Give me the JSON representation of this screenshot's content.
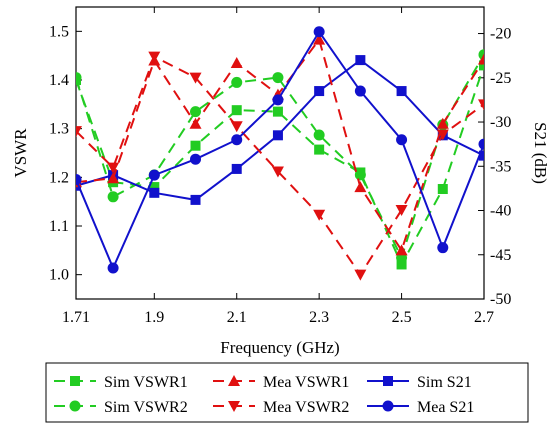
{
  "chart_data": {
    "type": "line",
    "xlabel": "Frequency (GHz)",
    "ylabel_left": "VSWR",
    "ylabel_right": "S21 (dB)",
    "x_ticks": [
      "1.71",
      "1.9",
      "2.1",
      "2.3",
      "2.5",
      "2.7"
    ],
    "x_tick_values": [
      1.71,
      1.9,
      2.1,
      2.3,
      2.5,
      2.7
    ],
    "y_left_ticks": [
      "1.0",
      "1.1",
      "1.2",
      "1.3",
      "1.4",
      "1.5"
    ],
    "y_left_tick_values": [
      1.0,
      1.1,
      1.2,
      1.3,
      1.4,
      1.5
    ],
    "y_right_ticks": [
      "-20",
      "-25",
      "-30",
      "-35",
      "-40",
      "-45",
      "-50"
    ],
    "y_right_tick_values": [
      -20,
      -25,
      -30,
      -35,
      -40,
      -45,
      -50
    ],
    "xlim": [
      1.71,
      2.7
    ],
    "ylim_left": [
      0.95,
      1.55
    ],
    "ylim_right": [
      -50,
      -17
    ],
    "grid": false,
    "legend_position": "bottom",
    "x": [
      1.71,
      1.8,
      1.9,
      2.0,
      2.1,
      2.2,
      2.3,
      2.4,
      2.5,
      2.6,
      2.7
    ],
    "series": [
      {
        "name": "Sim VSWR1",
        "axis": "left",
        "color": "#22cc22",
        "dash": "dashed",
        "marker": "square",
        "values": [
          1.4,
          1.19,
          1.18,
          1.265,
          1.338,
          1.335,
          1.257,
          1.21,
          1.021,
          1.176,
          1.43
        ]
      },
      {
        "name": "Sim VSWR2",
        "axis": "left",
        "color": "#22cc22",
        "dash": "dashed",
        "marker": "circle",
        "values": [
          1.405,
          1.16,
          1.205,
          1.335,
          1.395,
          1.405,
          1.287,
          1.205,
          1.035,
          1.308,
          1.452
        ]
      },
      {
        "name": "Sim S21",
        "axis": "right",
        "color": "#1111cc",
        "dash": "solid",
        "marker": "square",
        "values": [
          -37.2,
          -36.0,
          -38.0,
          -38.8,
          -35.3,
          -31.5,
          -26.5,
          -23.0,
          -26.5,
          -31.5,
          -33.8
        ]
      },
      {
        "name": "Mea VSWR1",
        "axis": "left",
        "color": "#e01010",
        "dash": "dashed",
        "marker": "triangle-up",
        "values": [
          1.19,
          1.198,
          1.44,
          1.31,
          1.435,
          1.37,
          1.483,
          1.18,
          1.05,
          1.31,
          1.442
        ]
      },
      {
        "name": "Mea VSWR2",
        "axis": "left",
        "color": "#e01010",
        "dash": "dashed",
        "marker": "triangle-down",
        "values": [
          1.295,
          1.22,
          1.448,
          1.405,
          1.305,
          1.212,
          1.123,
          1.0,
          1.133,
          1.288,
          1.35
        ]
      },
      {
        "name": "Mea S21",
        "axis": "right",
        "color": "#1111cc",
        "dash": "solid",
        "marker": "circle",
        "values": [
          -36.5,
          -46.5,
          -36.0,
          -34.2,
          -32.0,
          -27.5,
          -19.8,
          -26.5,
          -32.0,
          -44.2,
          -32.5
        ]
      }
    ]
  }
}
